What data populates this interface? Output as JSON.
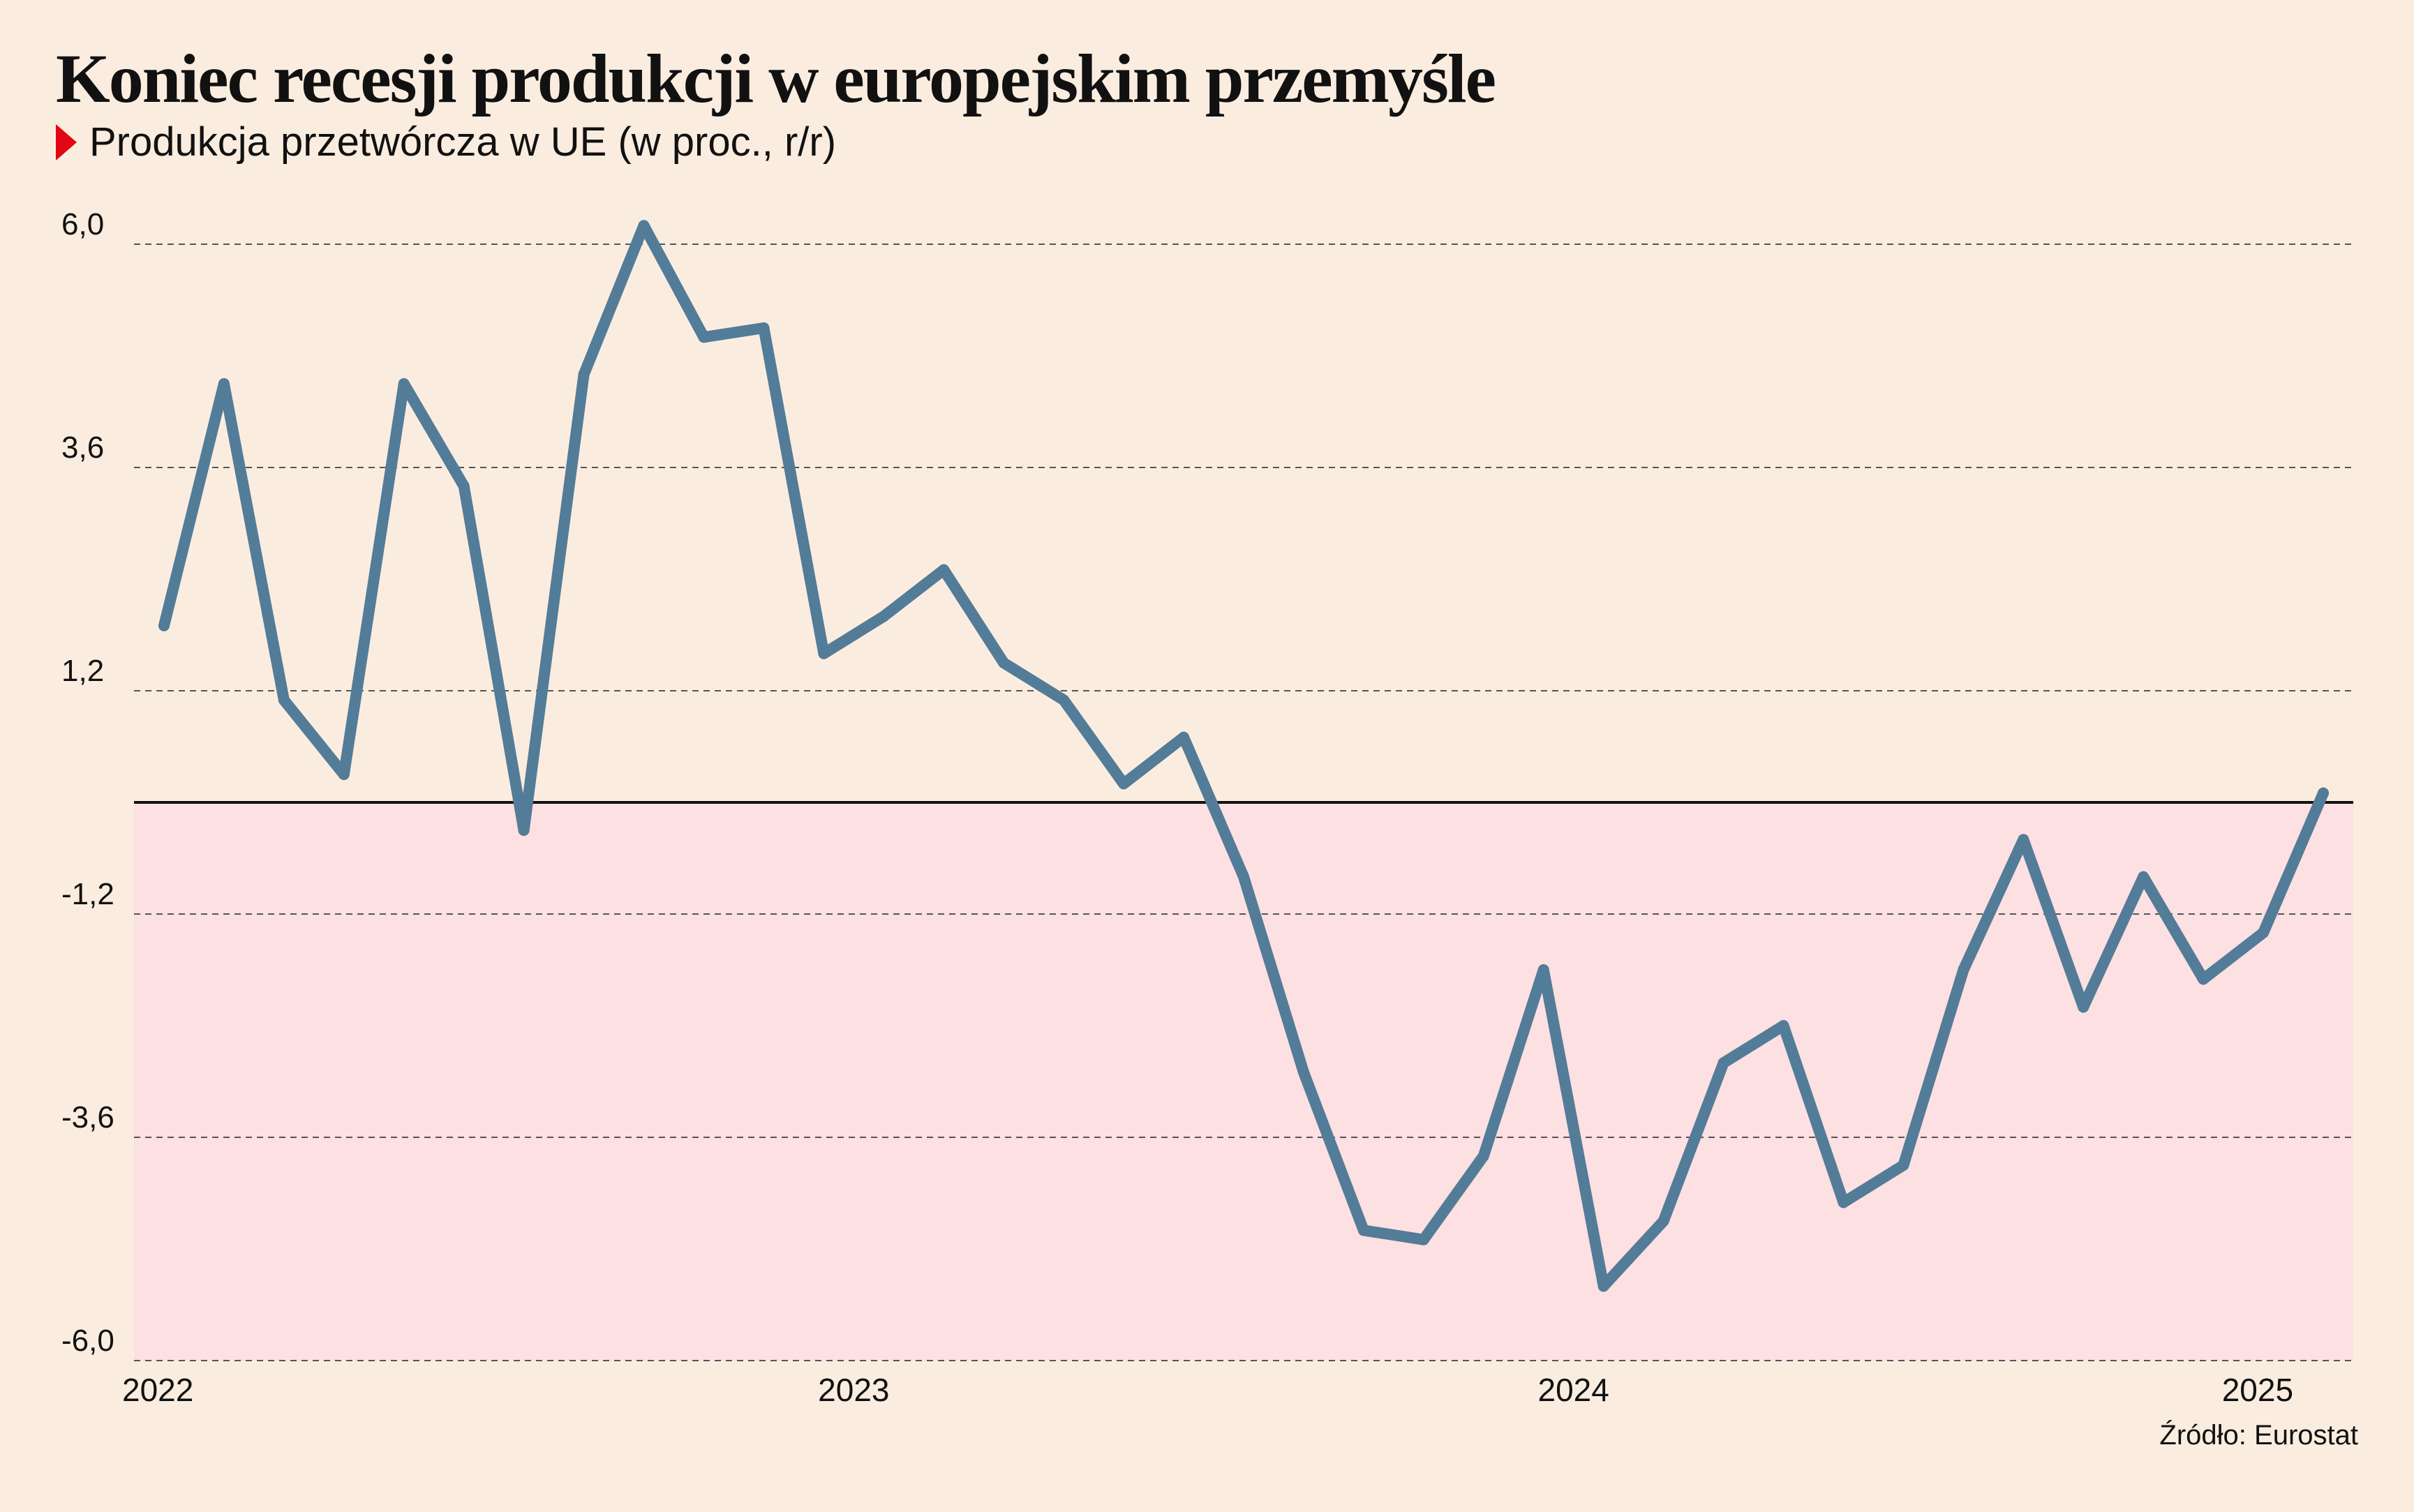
{
  "title": "Koniec recesji produkcji w europejskim przemyśle",
  "subtitle": "Produkcja przetwórcza w UE (w proc., r/r)",
  "source": "Źródło: Eurostat",
  "colors": {
    "background": "#faede0",
    "negative_area": "#fde0e2",
    "line": "#537c98",
    "marker": "#e30613",
    "zero_line": "#111111",
    "grid": "#555555"
  },
  "chart_data": {
    "type": "line",
    "title": "Koniec recesji produkcji w europejskim przemyśle",
    "subtitle": "Produkcja przetwórcza w UE (w proc., r/r)",
    "xlabel": "",
    "ylabel": "",
    "ylim": [
      -6.0,
      6.0
    ],
    "yticks": [
      "6,0",
      "3,6",
      "1,2",
      "-1,2",
      "-3,6",
      "-6,0"
    ],
    "ytick_values": [
      6.0,
      3.6,
      1.2,
      -1.2,
      -3.6,
      -6.0
    ],
    "xticks": [
      "2022",
      "2023",
      "2024",
      "2025"
    ],
    "xtick_months": [
      0,
      12,
      24,
      36
    ],
    "grid": true,
    "negative_region_shaded": true,
    "series": [
      {
        "values": [
          1.9,
          4.5,
          1.1,
          0.3,
          4.5,
          3.4,
          -0.3,
          4.6,
          6.2,
          5.0,
          5.1,
          1.6,
          2.0,
          2.5,
          1.5,
          1.1,
          0.2,
          0.7,
          -0.8,
          -2.9,
          -4.6,
          -4.7,
          -3.8,
          -1.8,
          -5.2,
          -4.5,
          -2.8,
          -2.4,
          -4.3,
          -3.9,
          -1.8,
          -0.4,
          -2.2,
          -0.8,
          -1.9,
          -1.4,
          0.1
        ]
      }
    ]
  }
}
